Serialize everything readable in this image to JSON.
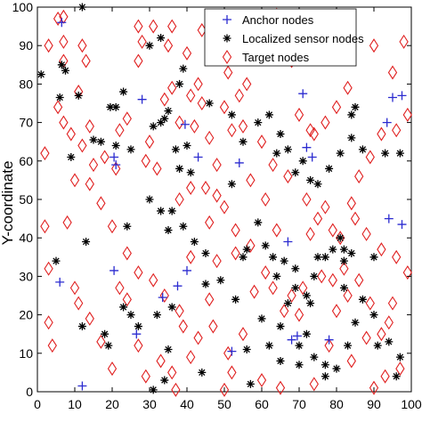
{
  "chart_data": {
    "type": "scatter",
    "title": "",
    "xlabel": "",
    "ylabel": "Y-coordinate",
    "xlim": [
      0,
      100
    ],
    "ylim": [
      0,
      100
    ],
    "xticks": [
      "0",
      "10",
      "20",
      "30",
      "40",
      "50",
      "60",
      "70",
      "80",
      "90",
      "100"
    ],
    "yticks": [
      "0",
      "10",
      "20",
      "30",
      "40",
      "50",
      "60",
      "70",
      "80",
      "90",
      "100"
    ],
    "grid": false,
    "legend_position": "top-right",
    "series": [
      {
        "name": "Anchor nodes",
        "marker": "plus",
        "color": "#2b2bd0",
        "points": [
          [
            6.5,
            96
          ],
          [
            28,
            76
          ],
          [
            20.5,
            61
          ],
          [
            21,
            59
          ],
          [
            39.5,
            69.5
          ],
          [
            43,
            61
          ],
          [
            54,
            59.5
          ],
          [
            71,
            77.5
          ],
          [
            72,
            63.5
          ],
          [
            73.5,
            61
          ],
          [
            67,
            39
          ],
          [
            97.5,
            43.5
          ],
          [
            94,
            45
          ],
          [
            95,
            76.5
          ],
          [
            97.5,
            77
          ],
          [
            93.5,
            70
          ],
          [
            6,
            28.5
          ],
          [
            20.5,
            31.5
          ],
          [
            40,
            31.5
          ],
          [
            37.5,
            27.5
          ],
          [
            33.5,
            24.5
          ],
          [
            26.5,
            15
          ],
          [
            12,
            1.5
          ],
          [
            52,
            10.5
          ],
          [
            69.5,
            14.5
          ],
          [
            68,
            13.5
          ],
          [
            78,
            13.5
          ]
        ]
      },
      {
        "name": "Localized sensor nodes",
        "marker": "asterisk",
        "color": "#000000",
        "points": [
          [
            12,
            100
          ],
          [
            1,
            82.5
          ],
          [
            6.5,
            85
          ],
          [
            7.5,
            83.5
          ],
          [
            6,
            76.5
          ],
          [
            11,
            77
          ],
          [
            9,
            61
          ],
          [
            15,
            65.5
          ],
          [
            17,
            65
          ],
          [
            19.5,
            74
          ],
          [
            21,
            74
          ],
          [
            21,
            64
          ],
          [
            23,
            78
          ],
          [
            25,
            63
          ],
          [
            30,
            90
          ],
          [
            33,
            92
          ],
          [
            34,
            71
          ],
          [
            31,
            69
          ],
          [
            33,
            70
          ],
          [
            35,
            73
          ],
          [
            38,
            80
          ],
          [
            39,
            84
          ],
          [
            46,
            75
          ],
          [
            40,
            64
          ],
          [
            37,
            63
          ],
          [
            41,
            57
          ],
          [
            38,
            58
          ],
          [
            52,
            54
          ],
          [
            52,
            72
          ],
          [
            59,
            70
          ],
          [
            55,
            65
          ],
          [
            62,
            72
          ],
          [
            65,
            67
          ],
          [
            64,
            62
          ],
          [
            69,
            57
          ],
          [
            67,
            63
          ],
          [
            71,
            60
          ],
          [
            73,
            55
          ],
          [
            78,
            58
          ],
          [
            75,
            54
          ],
          [
            81,
            62
          ],
          [
            84,
            66
          ],
          [
            84,
            72
          ],
          [
            85,
            74
          ],
          [
            87,
            63
          ],
          [
            93,
            62
          ],
          [
            97,
            62
          ],
          [
            30,
            50
          ],
          [
            24,
            43
          ],
          [
            33,
            47
          ],
          [
            36,
            47
          ],
          [
            35,
            42
          ],
          [
            39,
            43
          ],
          [
            42,
            39
          ],
          [
            45,
            36
          ],
          [
            45,
            28
          ],
          [
            49,
            29
          ],
          [
            53,
            24
          ],
          [
            55,
            35
          ],
          [
            56,
            37
          ],
          [
            59,
            44
          ],
          [
            61,
            38
          ],
          [
            63,
            35
          ],
          [
            64,
            30
          ],
          [
            66,
            34
          ],
          [
            69,
            32
          ],
          [
            72,
            25
          ],
          [
            74,
            30
          ],
          [
            75,
            35
          ],
          [
            77,
            35
          ],
          [
            79,
            37
          ],
          [
            81,
            40
          ],
          [
            82,
            37
          ],
          [
            82,
            34
          ],
          [
            84,
            36
          ],
          [
            82,
            27
          ],
          [
            90,
            35
          ],
          [
            5,
            34
          ],
          [
            13,
            39
          ],
          [
            12,
            17
          ],
          [
            18,
            15
          ],
          [
            19,
            12
          ],
          [
            23,
            22
          ],
          [
            25,
            20
          ],
          [
            27,
            17
          ],
          [
            32,
            20
          ],
          [
            35,
            11
          ],
          [
            36,
            22
          ],
          [
            44,
            5
          ],
          [
            57,
            2
          ],
          [
            56,
            11
          ],
          [
            60,
            19
          ],
          [
            62,
            12
          ],
          [
            65,
            17
          ],
          [
            67,
            23
          ],
          [
            69,
            27
          ],
          [
            73,
            23
          ],
          [
            72,
            15
          ],
          [
            74,
            9
          ],
          [
            77,
            4
          ],
          [
            80,
            6
          ],
          [
            83,
            12
          ],
          [
            85,
            18
          ],
          [
            87,
            24
          ],
          [
            90,
            20
          ],
          [
            91,
            12
          ],
          [
            94,
            13
          ],
          [
            96,
            4
          ],
          [
            97,
            9
          ],
          [
            31,
            0.5
          ],
          [
            34,
            3
          ],
          [
            70,
            12
          ],
          [
            70,
            7
          ],
          [
            65,
            8
          ],
          [
            77,
            7
          ]
        ]
      },
      {
        "name": "Target nodes",
        "marker": "diamond",
        "color": "#e02020",
        "points": [
          [
            5.5,
            97
          ],
          [
            7,
            97.5
          ],
          [
            3,
            90
          ],
          [
            7,
            91
          ],
          [
            7,
            86
          ],
          [
            5.5,
            74
          ],
          [
            12,
            90
          ],
          [
            13,
            86
          ],
          [
            11,
            78
          ],
          [
            9,
            67
          ],
          [
            12,
            64
          ],
          [
            14,
            69
          ],
          [
            15,
            59
          ],
          [
            18,
            61
          ],
          [
            21,
            58
          ],
          [
            24,
            71
          ],
          [
            22,
            68
          ],
          [
            30,
            65
          ],
          [
            29,
            60
          ],
          [
            32,
            58
          ],
          [
            34,
            76
          ],
          [
            36,
            79
          ],
          [
            38,
            70
          ],
          [
            27,
            95
          ],
          [
            28,
            91
          ],
          [
            27,
            86
          ],
          [
            31,
            95
          ],
          [
            36,
            95
          ],
          [
            35,
            90
          ],
          [
            40,
            88
          ],
          [
            44,
            94
          ],
          [
            47,
            91
          ],
          [
            43,
            80
          ],
          [
            41,
            77
          ],
          [
            44,
            75
          ],
          [
            42,
            69
          ],
          [
            46,
            66
          ],
          [
            48,
            59
          ],
          [
            41,
            53
          ],
          [
            38,
            50
          ],
          [
            45,
            53
          ],
          [
            48,
            51
          ],
          [
            50,
            48
          ],
          [
            46,
            44
          ],
          [
            53,
            42
          ],
          [
            57,
            38
          ],
          [
            53,
            36
          ],
          [
            48,
            34
          ],
          [
            2,
            43
          ],
          [
            3,
            32
          ],
          [
            3,
            18
          ],
          [
            4,
            12
          ],
          [
            8,
            44
          ],
          [
            10,
            27
          ],
          [
            11,
            23
          ],
          [
            14,
            19
          ],
          [
            17,
            13
          ],
          [
            20,
            6
          ],
          [
            22,
            27
          ],
          [
            24,
            24
          ],
          [
            27,
            12
          ],
          [
            29,
            4
          ],
          [
            33,
            8
          ],
          [
            36,
            5
          ],
          [
            37,
            0.5
          ],
          [
            41,
            9
          ],
          [
            43,
            14
          ],
          [
            39,
            17
          ],
          [
            46,
            24
          ],
          [
            51,
            10
          ],
          [
            50,
            0.5
          ],
          [
            52,
            5
          ],
          [
            55,
            15
          ],
          [
            58,
            26
          ],
          [
            63,
            27
          ],
          [
            61,
            31
          ],
          [
            66,
            21
          ],
          [
            68,
            25
          ],
          [
            71,
            27
          ],
          [
            70,
            20
          ],
          [
            76,
            30
          ],
          [
            79,
            29
          ],
          [
            80,
            21
          ],
          [
            82,
            32
          ],
          [
            83,
            25
          ],
          [
            86,
            29
          ],
          [
            89,
            23
          ],
          [
            92,
            15
          ],
          [
            94,
            18
          ],
          [
            95,
            23
          ],
          [
            92,
            37
          ],
          [
            96,
            35
          ],
          [
            99,
            31
          ],
          [
            88,
            41
          ],
          [
            85,
            45
          ],
          [
            84,
            49
          ],
          [
            86,
            56
          ],
          [
            89,
            61
          ],
          [
            92,
            67
          ],
          [
            96,
            68
          ],
          [
            99,
            72
          ],
          [
            95,
            83
          ],
          [
            98,
            91
          ],
          [
            90,
            90
          ],
          [
            83,
            79
          ],
          [
            80,
            74
          ],
          [
            77,
            70
          ],
          [
            74,
            67
          ],
          [
            73,
            68
          ],
          [
            70,
            72
          ],
          [
            68,
            86
          ],
          [
            66,
            92
          ],
          [
            64,
            98
          ],
          [
            57,
            88
          ],
          [
            56,
            80
          ],
          [
            51,
            83
          ],
          [
            54,
            77
          ],
          [
            50,
            74
          ],
          [
            52,
            68
          ],
          [
            55,
            69
          ],
          [
            60,
            65
          ],
          [
            63,
            59
          ],
          [
            67,
            56
          ],
          [
            72,
            50
          ],
          [
            75,
            45
          ],
          [
            79,
            42
          ],
          [
            81,
            40
          ],
          [
            77,
            48
          ],
          [
            73,
            41
          ],
          [
            64,
            42
          ],
          [
            61,
            50
          ],
          [
            57,
            55
          ],
          [
            2,
            62
          ],
          [
            7,
            70
          ],
          [
            10,
            55
          ],
          [
            14,
            54
          ],
          [
            17,
            49
          ],
          [
            20,
            43
          ],
          [
            24,
            36
          ],
          [
            27,
            31
          ],
          [
            31,
            29
          ],
          [
            34,
            25
          ],
          [
            38,
            21
          ],
          [
            41,
            35
          ],
          [
            47,
            17
          ],
          [
            60,
            3
          ],
          [
            65,
            1
          ],
          [
            74,
            2
          ],
          [
            78,
            12
          ],
          [
            84,
            8
          ],
          [
            88,
            14
          ],
          [
            90,
            1
          ],
          [
            97,
            6
          ],
          [
            93,
            4
          ]
        ]
      }
    ]
  }
}
